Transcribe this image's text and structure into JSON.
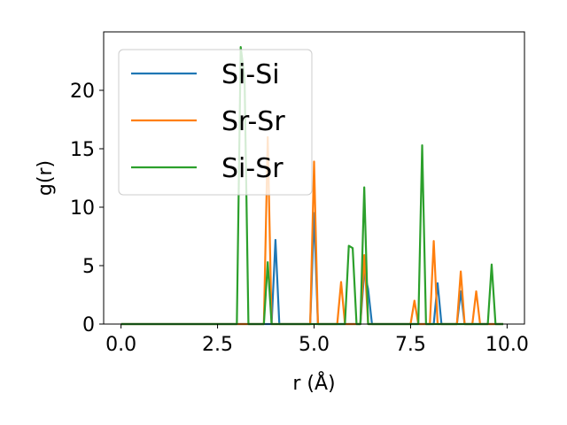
{
  "chart_data": {
    "type": "line",
    "xlabel": "r (Å)",
    "ylabel": "g(r)",
    "xlim": [
      -0.45,
      10.45
    ],
    "ylim": [
      0,
      25
    ],
    "xticks": [
      0.0,
      2.5,
      5.0,
      7.5,
      10.0
    ],
    "xtick_labels": [
      "0.0",
      "2.5",
      "5.0",
      "7.5",
      "10.0"
    ],
    "yticks": [
      0,
      5,
      10,
      15,
      20
    ],
    "ytick_labels": [
      "0",
      "5",
      "10",
      "15",
      "20"
    ],
    "grid": false,
    "legend_position": "upper-left",
    "series": [
      {
        "name": "Si-Si",
        "color": "#1f77b4",
        "points": [
          [
            0,
            0
          ],
          [
            3.7,
            0
          ],
          [
            3.8,
            0
          ],
          [
            3.9,
            0
          ],
          [
            4.0,
            7.2
          ],
          [
            4.1,
            0
          ],
          [
            4.9,
            0
          ],
          [
            5.0,
            9.5
          ],
          [
            5.1,
            0
          ],
          [
            6.2,
            0
          ],
          [
            6.3,
            4.5
          ],
          [
            6.4,
            3.0
          ],
          [
            6.5,
            0
          ],
          [
            8.1,
            0
          ],
          [
            8.2,
            3.5
          ],
          [
            8.3,
            0
          ],
          [
            8.7,
            0
          ],
          [
            8.8,
            2.8
          ],
          [
            8.9,
            0
          ],
          [
            9.9,
            0
          ]
        ]
      },
      {
        "name": "Sr-Sr",
        "color": "#ff7f0e",
        "points": [
          [
            0,
            0
          ],
          [
            3.7,
            0
          ],
          [
            3.8,
            16.0
          ],
          [
            3.9,
            0
          ],
          [
            4.9,
            0
          ],
          [
            5.0,
            13.9
          ],
          [
            5.1,
            0
          ],
          [
            5.6,
            0
          ],
          [
            5.7,
            3.6
          ],
          [
            5.8,
            0
          ],
          [
            6.2,
            0
          ],
          [
            6.3,
            5.9
          ],
          [
            6.4,
            0
          ],
          [
            7.5,
            0
          ],
          [
            7.6,
            2.0
          ],
          [
            7.7,
            0
          ],
          [
            8.0,
            0
          ],
          [
            8.1,
            7.1
          ],
          [
            8.2,
            0
          ],
          [
            8.7,
            0
          ],
          [
            8.8,
            4.5
          ],
          [
            8.9,
            0
          ],
          [
            9.1,
            0
          ],
          [
            9.2,
            2.8
          ],
          [
            9.3,
            0
          ],
          [
            9.9,
            0
          ]
        ]
      },
      {
        "name": "Si-Sr",
        "color": "#2ca02c",
        "points": [
          [
            0,
            0
          ],
          [
            3.0,
            0
          ],
          [
            3.1,
            23.7
          ],
          [
            3.2,
            21.0
          ],
          [
            3.3,
            0
          ],
          [
            3.7,
            0
          ],
          [
            3.8,
            5.3
          ],
          [
            3.9,
            0
          ],
          [
            5.8,
            0
          ],
          [
            5.9,
            6.7
          ],
          [
            6.0,
            6.5
          ],
          [
            6.1,
            0
          ],
          [
            6.2,
            0
          ],
          [
            6.3,
            11.7
          ],
          [
            6.4,
            0
          ],
          [
            7.7,
            0
          ],
          [
            7.8,
            15.3
          ],
          [
            7.9,
            0
          ],
          [
            9.5,
            0
          ],
          [
            9.6,
            5.1
          ],
          [
            9.7,
            0
          ],
          [
            9.9,
            0
          ]
        ]
      }
    ]
  }
}
